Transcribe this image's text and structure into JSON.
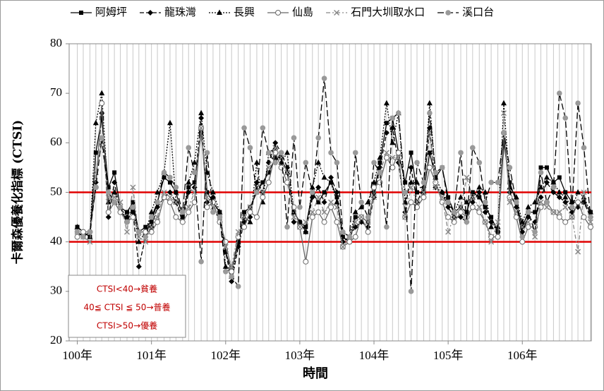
{
  "chart_data": {
    "type": "line",
    "y_label": "卡爾森優養化指標 (CTSI)",
    "x_label": "時間",
    "x": [
      100,
      100.08,
      100.17,
      100.25,
      100.33,
      100.42,
      100.5,
      100.58,
      100.67,
      100.75,
      100.83,
      100.92,
      101,
      101.08,
      101.17,
      101.25,
      101.33,
      101.42,
      101.5,
      101.58,
      101.67,
      101.75,
      101.83,
      101.92,
      102,
      102.08,
      102.17,
      102.25,
      102.33,
      102.42,
      102.5,
      102.58,
      102.67,
      102.75,
      102.83,
      102.92,
      103,
      103.08,
      103.17,
      103.25,
      103.33,
      103.42,
      103.5,
      103.58,
      103.67,
      103.75,
      103.83,
      103.92,
      104,
      104.08,
      104.17,
      104.25,
      104.33,
      104.42,
      104.5,
      104.58,
      104.67,
      104.75,
      104.83,
      104.92,
      105,
      105.08,
      105.17,
      105.25,
      105.33,
      105.42,
      105.5,
      105.58,
      105.67,
      105.75,
      105.83,
      105.92,
      106,
      106.08,
      106.17,
      106.25,
      106.33,
      106.42,
      106.5,
      106.58,
      106.67,
      106.75,
      106.83,
      106.92
    ],
    "xlim": [
      99.89,
      106.93
    ],
    "xticks": [
      {
        "value": 100,
        "label": "100年"
      },
      {
        "value": 101,
        "label": "101年"
      },
      {
        "value": 102,
        "label": "102年"
      },
      {
        "value": 103,
        "label": "103年"
      },
      {
        "value": 104,
        "label": "104年"
      },
      {
        "value": 105,
        "label": "105年"
      },
      {
        "value": 106,
        "label": "106年"
      }
    ],
    "ylim": [
      20,
      80
    ],
    "yticks": [
      20,
      30,
      40,
      50,
      60,
      70,
      80
    ],
    "grid": "x",
    "reference_lines": [
      {
        "value": 40,
        "color": "#e00000"
      },
      {
        "value": 50,
        "color": "#e00000"
      }
    ],
    "annotations": [
      "CTSI<40→貧養",
      "40≦ CTSI ≦ 50→普養",
      "CTSI>50→優養"
    ],
    "annotation_color": "#c00000",
    "series": [
      {
        "name": "阿姆坪",
        "color": "#000000",
        "dash": "",
        "marker": "square",
        "marker_fill": "#000000",
        "values": [
          43,
          42,
          41,
          58,
          65,
          51,
          54,
          47,
          46,
          48,
          42,
          43,
          44,
          48,
          53,
          52,
          50,
          45,
          51,
          52,
          62,
          50,
          48,
          46,
          38,
          34,
          40,
          46,
          47,
          50,
          52,
          54,
          57,
          57,
          54,
          46,
          44,
          43,
          50,
          48,
          50,
          52,
          49,
          41,
          40,
          45,
          45,
          44,
          50,
          56,
          64,
          65,
          58,
          52,
          58,
          50,
          50,
          58,
          53,
          55,
          49,
          46,
          47,
          46,
          50,
          49,
          47,
          45,
          42,
          60,
          52,
          48,
          43,
          46,
          46,
          55,
          55,
          52,
          53,
          50,
          48,
          48,
          48,
          46
        ]
      },
      {
        "name": "龍珠灣",
        "color": "#000000",
        "dash": "6,3",
        "marker": "diamond",
        "marker_fill": "#000000",
        "values": [
          42,
          41,
          42,
          52,
          66,
          45,
          52,
          46,
          45,
          46,
          35,
          41,
          43,
          47,
          49,
          50,
          48,
          44,
          50,
          51,
          65,
          48,
          49,
          45,
          38,
          32,
          39,
          44,
          45,
          52,
          50,
          56,
          60,
          58,
          55,
          44,
          44,
          42,
          49,
          51,
          48,
          53,
          50,
          40,
          41,
          43,
          44,
          43,
          49,
          55,
          62,
          63,
          56,
          46,
          55,
          48,
          51,
          63,
          51,
          50,
          47,
          45,
          45,
          44,
          48,
          50,
          46,
          44,
          42,
          62,
          50,
          47,
          42,
          45,
          44,
          49,
          52,
          50,
          49,
          48,
          46,
          47,
          48,
          45
        ]
      },
      {
        "name": "長興",
        "color": "#000000",
        "dash": "2,2",
        "marker": "triangle",
        "marker_fill": "#000000",
        "values": [
          43,
          42,
          41,
          64,
          70,
          48,
          50,
          47,
          45,
          47,
          40,
          42,
          46,
          50,
          54,
          64,
          48,
          45,
          52,
          56,
          66,
          54,
          50,
          46,
          35,
          33,
          40,
          45,
          44,
          56,
          48,
          58,
          59,
          56,
          58,
          46,
          44,
          42,
          51,
          56,
          53,
          52,
          48,
          42,
          41,
          46,
          47,
          48,
          52,
          57,
          68,
          60,
          66,
          48,
          52,
          52,
          50,
          68,
          53,
          50,
          48,
          46,
          49,
          48,
          49,
          51,
          50,
          43,
          43,
          68,
          51,
          49,
          44,
          47,
          48,
          51,
          53,
          52,
          50,
          49,
          47,
          50,
          49,
          46
        ]
      },
      {
        "name": "仙島",
        "color": "#666666",
        "dash": "",
        "marker": "circle",
        "marker_fill": "#ffffff",
        "values": [
          41,
          42,
          42,
          51,
          68,
          46,
          48,
          46,
          44,
          45,
          42,
          42,
          42,
          44,
          49,
          48,
          45,
          44,
          46,
          48,
          63,
          47,
          48,
          44,
          40,
          34,
          41,
          43,
          46,
          45,
          49,
          52,
          58,
          55,
          52,
          47,
          43,
          36,
          45,
          46,
          44,
          47,
          44,
          39,
          40,
          41,
          45,
          42,
          51,
          52,
          57,
          55,
          58,
          45,
          48,
          47,
          49,
          55,
          52,
          48,
          45,
          44,
          46,
          45,
          47,
          46,
          44,
          41,
          41,
          62,
          49,
          45,
          40,
          43,
          43,
          47,
          48,
          46,
          45,
          44,
          45,
          48,
          45,
          43
        ]
      },
      {
        "name": "石門大圳取水口",
        "color": "#888888",
        "dash": "6,3,2,3",
        "marker": "x",
        "marker_fill": "#888888",
        "values": [
          42,
          41,
          40,
          54,
          60,
          49,
          49,
          48,
          42,
          51,
          41,
          40,
          43,
          45,
          50,
          49,
          48,
          46,
          47,
          50,
          63,
          49,
          47,
          45,
          39,
          35,
          42,
          45,
          47,
          51,
          50,
          55,
          59,
          57,
          54,
          45,
          43,
          44,
          46,
          49,
          46,
          48,
          47,
          39,
          41,
          44,
          45,
          44,
          49,
          54,
          58,
          57,
          57,
          45,
          51,
          48,
          50,
          62,
          51,
          49,
          42,
          45,
          47,
          53,
          49,
          47,
          44,
          40,
          44,
          66,
          48,
          46,
          43,
          44,
          41,
          48,
          47,
          46,
          46,
          47,
          45,
          38,
          50,
          44
        ]
      },
      {
        "name": "溪口台",
        "color": "#000000",
        "dash": "9,4",
        "marker": "dot",
        "marker_fill": "#999999",
        "values": [
          42,
          41,
          42,
          51,
          61,
          50,
          48,
          47,
          44,
          47,
          42,
          41,
          45,
          48,
          54,
          53,
          51,
          46,
          59,
          54,
          36,
          58,
          46,
          45,
          34,
          33,
          31,
          63,
          59,
          50,
          63,
          58,
          56,
          58,
          43,
          61,
          47,
          56,
          50,
          61,
          73,
          58,
          56,
          42,
          41,
          58,
          48,
          45,
          56,
          54,
          43,
          65,
          66,
          50,
          30,
          56,
          52,
          66,
          54,
          55,
          48,
          46,
          58,
          44,
          59,
          56,
          48,
          52,
          52,
          62,
          55,
          48,
          41,
          46,
          42,
          54,
          48,
          51,
          70,
          65,
          47,
          68,
          59,
          45
        ]
      }
    ]
  }
}
